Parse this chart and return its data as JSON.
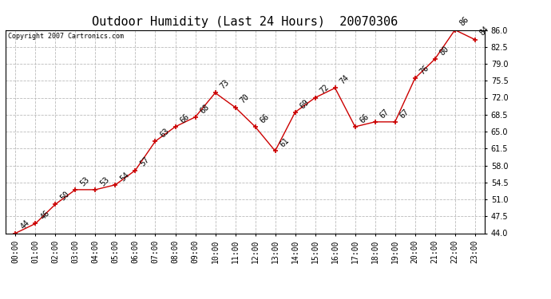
{
  "title": "Outdoor Humidity (Last 24 Hours)  20070306",
  "copyright": "Copyright 2007 Cartronics.com",
  "x_labels": [
    "00:00",
    "01:00",
    "02:00",
    "03:00",
    "04:00",
    "05:00",
    "06:00",
    "07:00",
    "08:00",
    "09:00",
    "10:00",
    "11:00",
    "12:00",
    "13:00",
    "14:00",
    "15:00",
    "16:00",
    "17:00",
    "18:00",
    "19:00",
    "20:00",
    "21:00",
    "22:00",
    "23:00"
  ],
  "hours": [
    0,
    1,
    2,
    3,
    4,
    5,
    6,
    7,
    8,
    9,
    10,
    11,
    12,
    13,
    14,
    15,
    16,
    17,
    18,
    19,
    20,
    21,
    22,
    23
  ],
  "values": [
    44,
    46,
    50,
    53,
    53,
    54,
    57,
    63,
    66,
    68,
    73,
    70,
    66,
    61,
    69,
    72,
    74,
    66,
    67,
    67,
    76,
    80,
    86,
    84
  ],
  "ylim": [
    44.0,
    86.0
  ],
  "yticks": [
    44.0,
    47.5,
    51.0,
    54.5,
    58.0,
    61.5,
    65.0,
    68.5,
    72.0,
    75.5,
    79.0,
    82.5,
    86.0
  ],
  "line_color": "#cc0000",
  "marker": "+",
  "background_color": "#ffffff",
  "grid_color": "#bbbbbb",
  "title_fontsize": 11,
  "label_fontsize": 7,
  "annotation_fontsize": 7,
  "copyright_fontsize": 6
}
